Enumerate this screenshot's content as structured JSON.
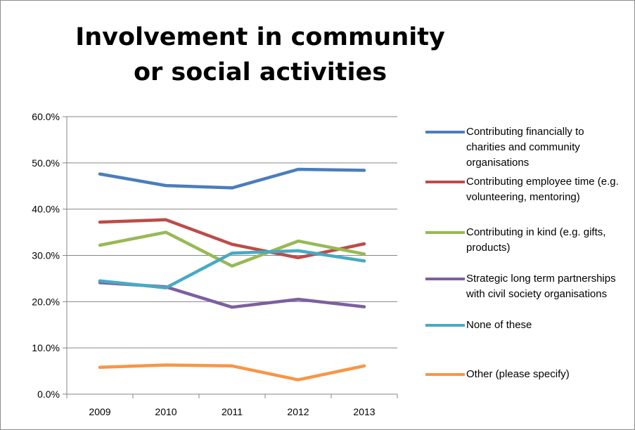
{
  "chart_data": {
    "type": "line",
    "title": "Involvement in community or social activities",
    "categories": [
      "2009",
      "2010",
      "2011",
      "2012",
      "2013"
    ],
    "y_ticks": [
      "0.0%",
      "10.0%",
      "20.0%",
      "30.0%",
      "40.0%",
      "50.0%",
      "60.0%"
    ],
    "ylim": [
      0,
      60
    ],
    "grid": true,
    "legend_position": "right",
    "series": [
      {
        "name": "Contributing financially to charities and community organisations",
        "color": "#4a7ebb",
        "values": [
          47.6,
          45.1,
          44.6,
          48.6,
          48.4
        ]
      },
      {
        "name": "Contributing employee time (e.g. volunteering, mentoring)",
        "color": "#be4b48",
        "values": [
          37.2,
          37.7,
          32.4,
          29.5,
          32.5
        ]
      },
      {
        "name": "Contributing in kind (e.g. gifts, products)",
        "color": "#98b954",
        "values": [
          32.2,
          35.0,
          27.7,
          33.1,
          30.3
        ]
      },
      {
        "name": "Strategic long term partnerships with civil society organisations",
        "color": "#7d5fa0",
        "values": [
          24.1,
          23.2,
          18.8,
          20.5,
          18.9
        ]
      },
      {
        "name": "None of these",
        "color": "#46aac5",
        "values": [
          24.5,
          23.0,
          30.5,
          31.0,
          28.8
        ]
      },
      {
        "name": "Other (please specify)",
        "color": "#f79646",
        "values": [
          5.8,
          6.3,
          6.1,
          3.1,
          6.1
        ]
      }
    ]
  }
}
